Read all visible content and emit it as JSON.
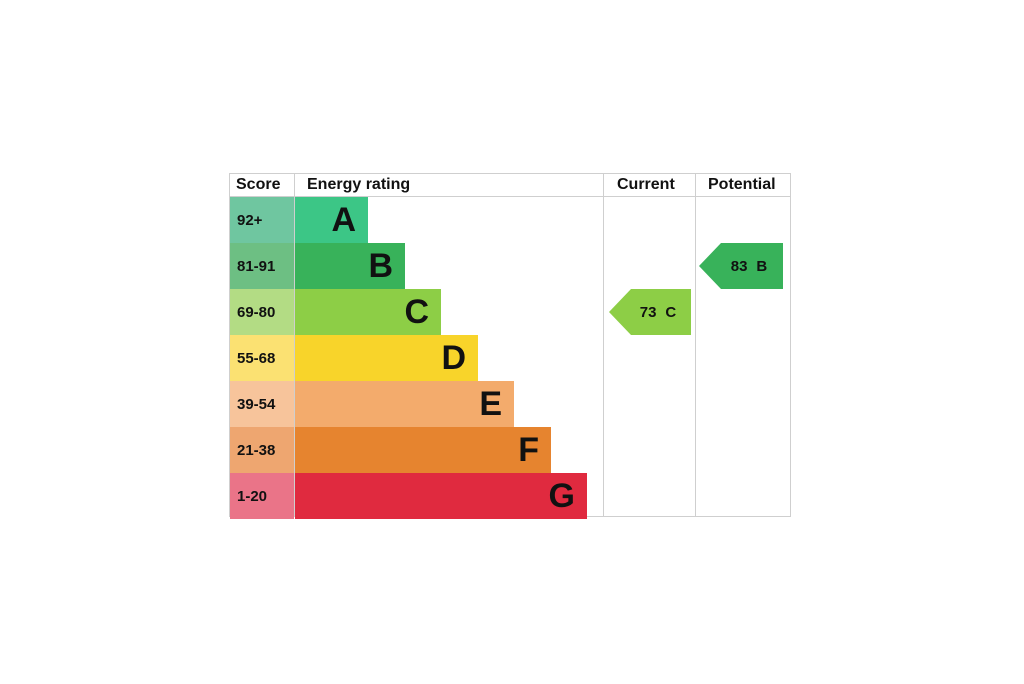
{
  "chart_data": {
    "type": "bar",
    "headers": {
      "score": "Score",
      "energy_rating": "Energy rating",
      "current": "Current",
      "potential": "Potential"
    },
    "bands": [
      {
        "score": "92+",
        "letter": "A",
        "color": "#3cc686",
        "score_bg": "#6fc6a0"
      },
      {
        "score": "81-91",
        "letter": "B",
        "color": "#38b25a",
        "score_bg": "#6dbf83"
      },
      {
        "score": "69-80",
        "letter": "C",
        "color": "#8dce46",
        "score_bg": "#b3dc84"
      },
      {
        "score": "55-68",
        "letter": "D",
        "color": "#f8d42a",
        "score_bg": "#fbe172"
      },
      {
        "score": "39-54",
        "letter": "E",
        "color": "#f3ab6c",
        "score_bg": "#f7c49b"
      },
      {
        "score": "21-38",
        "letter": "F",
        "color": "#e6842f",
        "score_bg": "#eea670"
      },
      {
        "score": "1-20",
        "letter": "G",
        "color": "#e02a3f",
        "score_bg": "#ea7488"
      }
    ],
    "current": {
      "value": "73",
      "letter": "C",
      "band": 2,
      "color": "#8dce46"
    },
    "potential": {
      "value": "83",
      "letter": "B",
      "band": 1,
      "color": "#38b25a"
    }
  }
}
